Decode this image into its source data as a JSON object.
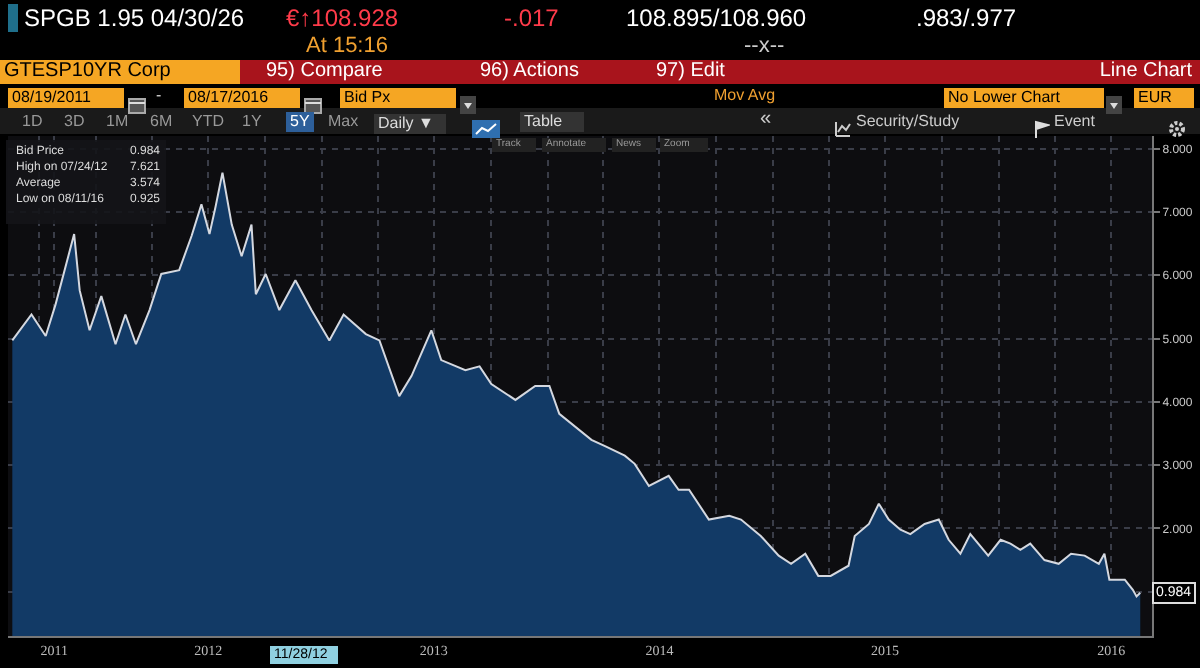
{
  "chart_data": {
    "type": "area",
    "x": [
      "2011-08-19",
      "2011-09-19",
      "2011-10-12",
      "2011-10-28",
      "2011-11-20",
      "2011-11-27",
      "2011-12-06",
      "2011-12-22",
      "2012-01-10",
      "2012-02-02",
      "2012-02-18",
      "2012-03-06",
      "2012-03-28",
      "2012-04-16",
      "2012-05-15",
      "2012-06-04",
      "2012-06-20",
      "2012-07-03",
      "2012-07-13",
      "2012-07-24",
      "2012-08-08",
      "2012-08-24",
      "2012-09-09",
      "2012-09-16",
      "2012-10-02",
      "2012-10-24",
      "2012-11-19",
      "2012-12-15",
      "2013-01-13",
      "2013-02-05",
      "2013-03-13",
      "2013-04-04",
      "2013-05-06",
      "2013-05-26",
      "2013-06-27",
      "2013-07-13",
      "2013-08-21",
      "2013-09-13",
      "2013-10-02",
      "2013-11-10",
      "2013-12-12",
      "2014-01-04",
      "2014-01-20",
      "2014-03-13",
      "2014-04-04",
      "2014-05-06",
      "2014-05-22",
      "2014-06-14",
      "2014-07-16",
      "2014-08-01",
      "2014-08-18",
      "2014-09-19",
      "2014-10-22",
      "2014-11-10",
      "2014-12-12",
      "2015-01-10",
      "2015-01-30",
      "2015-02-22",
      "2015-03-15",
      "2015-04-04",
      "2015-05-03",
      "2015-05-13",
      "2015-06-05",
      "2015-06-21",
      "2015-07-07",
      "2015-07-26",
      "2015-08-11",
      "2015-09-03",
      "2015-09-26",
      "2015-10-12",
      "2015-10-31",
      "2015-11-16",
      "2015-12-15",
      "2016-01-04",
      "2016-01-20",
      "2016-02-05",
      "2016-02-21",
      "2016-03-15",
      "2016-04-07",
      "2016-04-27",
      "2016-05-19",
      "2016-06-11",
      "2016-06-20",
      "2016-06-28",
      "2016-07-23",
      "2016-08-05",
      "2016-08-11",
      "2016-08-17"
    ],
    "series": [
      {
        "color": "#123a66",
        "values": [
          4.97,
          5.38,
          5.04,
          5.54,
          6.39,
          6.65,
          5.76,
          5.13,
          5.67,
          4.91,
          5.38,
          4.91,
          5.45,
          6.02,
          6.08,
          6.62,
          7.12,
          6.65,
          7.09,
          7.621,
          6.8,
          6.3,
          6.8,
          5.7,
          6.02,
          5.45,
          5.92,
          5.45,
          4.97,
          5.38,
          5.07,
          4.97,
          4.09,
          4.41,
          5.13,
          4.66,
          4.5,
          4.56,
          4.28,
          4.03,
          4.25,
          4.25,
          3.81,
          3.4,
          3.3,
          3.15,
          3.02,
          2.67,
          2.83,
          2.61,
          2.61,
          2.14,
          2.2,
          2.14,
          1.88,
          1.57,
          1.44,
          1.6,
          1.25,
          1.25,
          1.41,
          1.88,
          2.07,
          2.39,
          2.14,
          1.98,
          1.91,
          2.07,
          2.14,
          1.82,
          1.6,
          1.91,
          1.57,
          1.82,
          1.76,
          1.66,
          1.76,
          1.5,
          1.44,
          1.6,
          1.57,
          1.44,
          1.6,
          1.19,
          1.19,
          1.03,
          0.925,
          0.984
        ]
      }
    ],
    "xlim": [
      "2011-08-12",
      "2016-09-05"
    ],
    "xticks": [
      {
        "value": "2011-10-01",
        "label": null
      },
      {
        "value": "2011-10-26",
        "label": "2011"
      },
      {
        "value": "2012-01-01",
        "label": null
      },
      {
        "value": "2012-04-01",
        "label": null
      },
      {
        "value": "2012-07-01",
        "label": "2012"
      },
      {
        "value": "2012-10-01",
        "label": null
      },
      {
        "value": "2013-01-01",
        "label": null
      },
      {
        "value": "2013-04-01",
        "label": null
      },
      {
        "value": "2013-07-01",
        "label": "2013"
      },
      {
        "value": "2013-10-01",
        "label": null
      },
      {
        "value": "2014-01-01",
        "label": null
      },
      {
        "value": "2014-04-01",
        "label": null
      },
      {
        "value": "2014-07-01",
        "label": "2014"
      },
      {
        "value": "2014-10-01",
        "label": null
      },
      {
        "value": "2015-01-01",
        "label": null
      },
      {
        "value": "2015-04-01",
        "label": null
      },
      {
        "value": "2015-07-01",
        "label": "2015"
      },
      {
        "value": "2015-10-01",
        "label": null
      },
      {
        "value": "2016-01-01",
        "label": null
      },
      {
        "value": "2016-04-01",
        "label": null
      },
      {
        "value": "2016-07-01",
        "label": "2016"
      }
    ],
    "ylim": [
      0.3,
      8.2
    ],
    "yticks": [
      {
        "value": 1,
        "label": null
      },
      {
        "value": 2,
        "label": "2.000"
      },
      {
        "value": 3,
        "label": "3.000"
      },
      {
        "value": 4,
        "label": "4.000"
      },
      {
        "value": 5,
        "label": "5.000"
      },
      {
        "value": 6,
        "label": "6.000"
      },
      {
        "value": 7,
        "label": "7.000"
      },
      {
        "value": 8,
        "label": "8.000"
      }
    ],
    "grid": true,
    "annotations": [
      "SPGB 1.95 04/30/26",
      "€↑108.928",
      "-.017",
      "108.895/108.960",
      ".983/.977",
      "At 15:16",
      "--x--",
      "GTESP10YR Corp",
      "95) Compare",
      "96) Actions",
      "97) Edit",
      "Line Chart",
      "08/19/2011",
      "-",
      "08/17/2016",
      "Bid Px",
      "Mov Avg",
      "No Lower Chart",
      "EUR",
      "1D",
      "3D",
      "1M",
      "6M",
      "YTD",
      "1Y",
      "5Y",
      "Max",
      "Daily ▼",
      "Table",
      "«",
      "Security/Study",
      "Event",
      "Track",
      "Annotate",
      "News",
      "Zoom",
      "Bid Price",
      "0.984",
      "High on 07/24/12",
      "7.621",
      "Average",
      "3.574",
      "Low on 08/11/16",
      "0.925",
      "11/28/12",
      {
        "text": "0.984",
        "y": 0.984
      }
    ]
  }
}
